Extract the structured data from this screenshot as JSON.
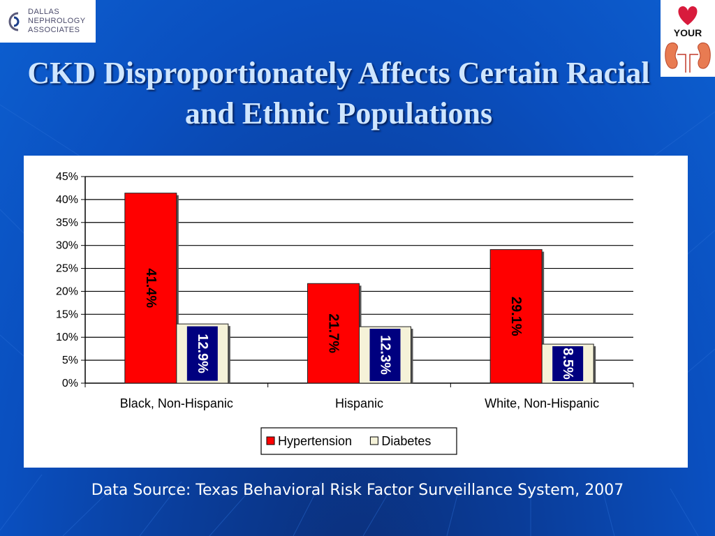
{
  "logo_left": {
    "line1": "DALLAS",
    "line2": "NEPHROLOGY",
    "line3": "ASSOCIATES"
  },
  "logo_right": {
    "text": "YOUR"
  },
  "slide": {
    "title": "CKD Disproportionately Affects Certain Racial and Ethnic Populations",
    "source": "Data Source:  Texas Behavioral Risk Factor Surveillance System, 2007"
  },
  "chart_data": {
    "type": "bar",
    "categories": [
      "Black, Non-Hispanic",
      "Hispanic",
      "White, Non-Hispanic"
    ],
    "series": [
      {
        "name": "Hypertension",
        "values": [
          41.4,
          21.7,
          29.1
        ],
        "labels": [
          "41.4%",
          "21.7%",
          "29.1%"
        ],
        "color": "#ff0000",
        "label_color": "#000000"
      },
      {
        "name": "Diabetes",
        "values": [
          12.9,
          12.3,
          8.5
        ],
        "labels": [
          "12.9%",
          "12.3%",
          "8.5%"
        ],
        "color": "#f5f2d8",
        "label_color": "#ffffff",
        "label_box": "#00007f"
      }
    ],
    "yticks": [
      "0%",
      "5%",
      "10%",
      "15%",
      "20%",
      "25%",
      "30%",
      "35%",
      "40%",
      "45%"
    ],
    "ylim": [
      0,
      45
    ],
    "grid": true,
    "legend": "bottom"
  }
}
